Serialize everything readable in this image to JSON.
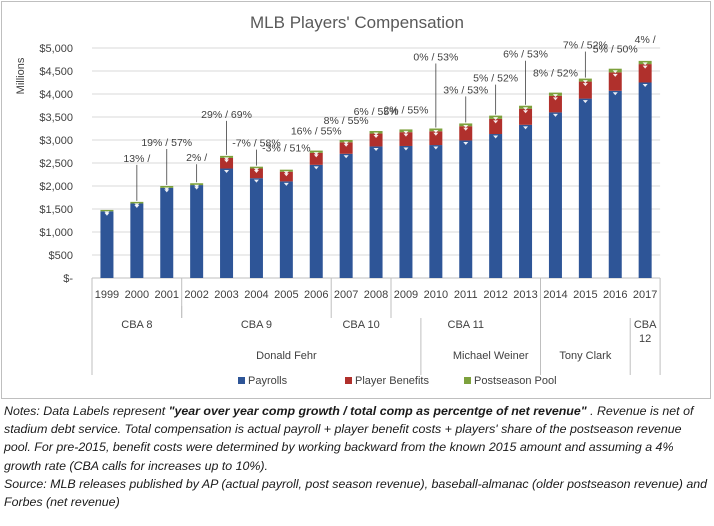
{
  "chart_data": {
    "type": "bar",
    "stacked": true,
    "title": "MLB Players' Compensation",
    "ylabel": "Millions",
    "ylim": [
      0,
      5000
    ],
    "y_ticks": [
      "$-",
      "$500",
      "$1,000",
      "$1,500",
      "$2,000",
      "$2,500",
      "$3,000",
      "$3,500",
      "$4,000",
      "$4,500",
      "$5,000"
    ],
    "grid": true,
    "legend_position": "bottom",
    "categories": [
      "1999",
      "2000",
      "2001",
      "2002",
      "2003",
      "2004",
      "2005",
      "2006",
      "2007",
      "2008",
      "2009",
      "2010",
      "2011",
      "2012",
      "2013",
      "2014",
      "2015",
      "2016",
      "2017"
    ],
    "series": [
      {
        "name": "Payrolls",
        "color": "#2e5597",
        "values": [
          1450,
          1620,
          1960,
          2020,
          2380,
          2170,
          2100,
          2460,
          2700,
          2860,
          2870,
          2890,
          2990,
          3130,
          3330,
          3600,
          3900,
          4070,
          4250
        ]
      },
      {
        "name": "Player Benefits",
        "color": "#b0302c",
        "values": [
          0,
          0,
          0,
          0,
          230,
          210,
          210,
          260,
          250,
          280,
          300,
          300,
          310,
          330,
          350,
          360,
          370,
          400,
          400
        ]
      },
      {
        "name": "Postseason Pool",
        "color": "#7da13d",
        "values": [
          30,
          35,
          40,
          40,
          45,
          40,
          45,
          50,
          50,
          55,
          60,
          60,
          60,
          70,
          65,
          70,
          65,
          80,
          70
        ]
      }
    ],
    "data_labels": [
      "",
      "13% /",
      "19% / 57%",
      "2% /",
      "29% / 69%",
      "-7% / 58%",
      "-3% / 51%",
      "16% / 55%",
      "8% / 55%",
      "6% / 55%",
      "2% / 55%",
      "0% / 53%",
      "3% / 53%",
      "5% / 52%",
      "6% / 53%",
      "8% / 52%",
      "7% / 52%",
      "5% / 50%",
      "4% /"
    ],
    "cba_groups": [
      {
        "label": "CBA 8",
        "start": 0,
        "end": 2
      },
      {
        "label": "CBA 9",
        "start": 3,
        "end": 7
      },
      {
        "label": "CBA 10",
        "start": 8,
        "end": 9
      },
      {
        "label": "CBA 11",
        "start": 10,
        "end": 14
      },
      {
        "label": "CBA",
        "label2": "12",
        "start": 18,
        "end": 18
      }
    ],
    "leader_groups": [
      {
        "label": "Donald Fehr",
        "start": 0,
        "end": 10
      },
      {
        "label": "Michael Weiner",
        "start": 10,
        "end": 14
      },
      {
        "label": "Tony Clark",
        "start": 14,
        "end": 18
      }
    ]
  },
  "notes": {
    "prefix": "Notes: Data Labels represent ",
    "emphasis": "\"year over year comp growth / total comp as percentge of net revenue\"",
    "body": " . Revenue is net of stadium debt service.  Total compensation is actual payroll + player benefit costs + players' share of the postseason revenue pool. For pre-2015, benefit costs were determined by working backward from the known 2015 amount and assuming a 4% growth rate (CBA calls for increases up to 10%).",
    "source": "Source: MLB releases published by AP (actual payroll, post season revenue), baseball-almanac (older postseason revenue) and Forbes (net revenue)"
  }
}
